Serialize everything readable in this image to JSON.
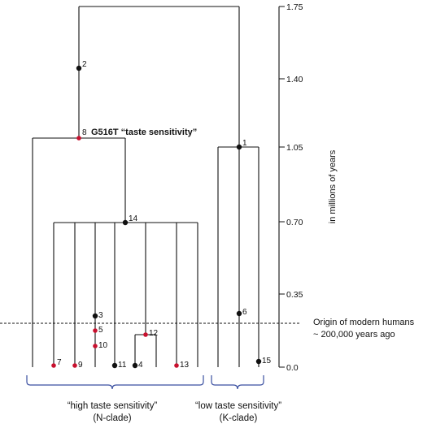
{
  "axis": {
    "ticks": [
      "1.75",
      "1.40",
      "1.05",
      "0.70",
      "0.35",
      "0.0"
    ],
    "label": "in millions of years"
  },
  "mutation_label": "G516T “taste sensitivity”",
  "origin_note": {
    "line1": "Origin of modern humans",
    "line2": "~ 200,000 years ago"
  },
  "clades": {
    "high": {
      "line1": "“high taste sensitivity”",
      "line2": "(N-clade)"
    },
    "low": {
      "line1": "“low taste sensitivity”",
      "line2": "(K-clade)"
    }
  },
  "nodes": [
    "1",
    "2",
    "3",
    "4",
    "5",
    "6",
    "7",
    "8",
    "9",
    "10",
    "11",
    "12",
    "13",
    "14",
    "15"
  ],
  "colors": {
    "black_node": "#111111",
    "red_node": "#c8102e",
    "brace": "#3a4fa0"
  }
}
